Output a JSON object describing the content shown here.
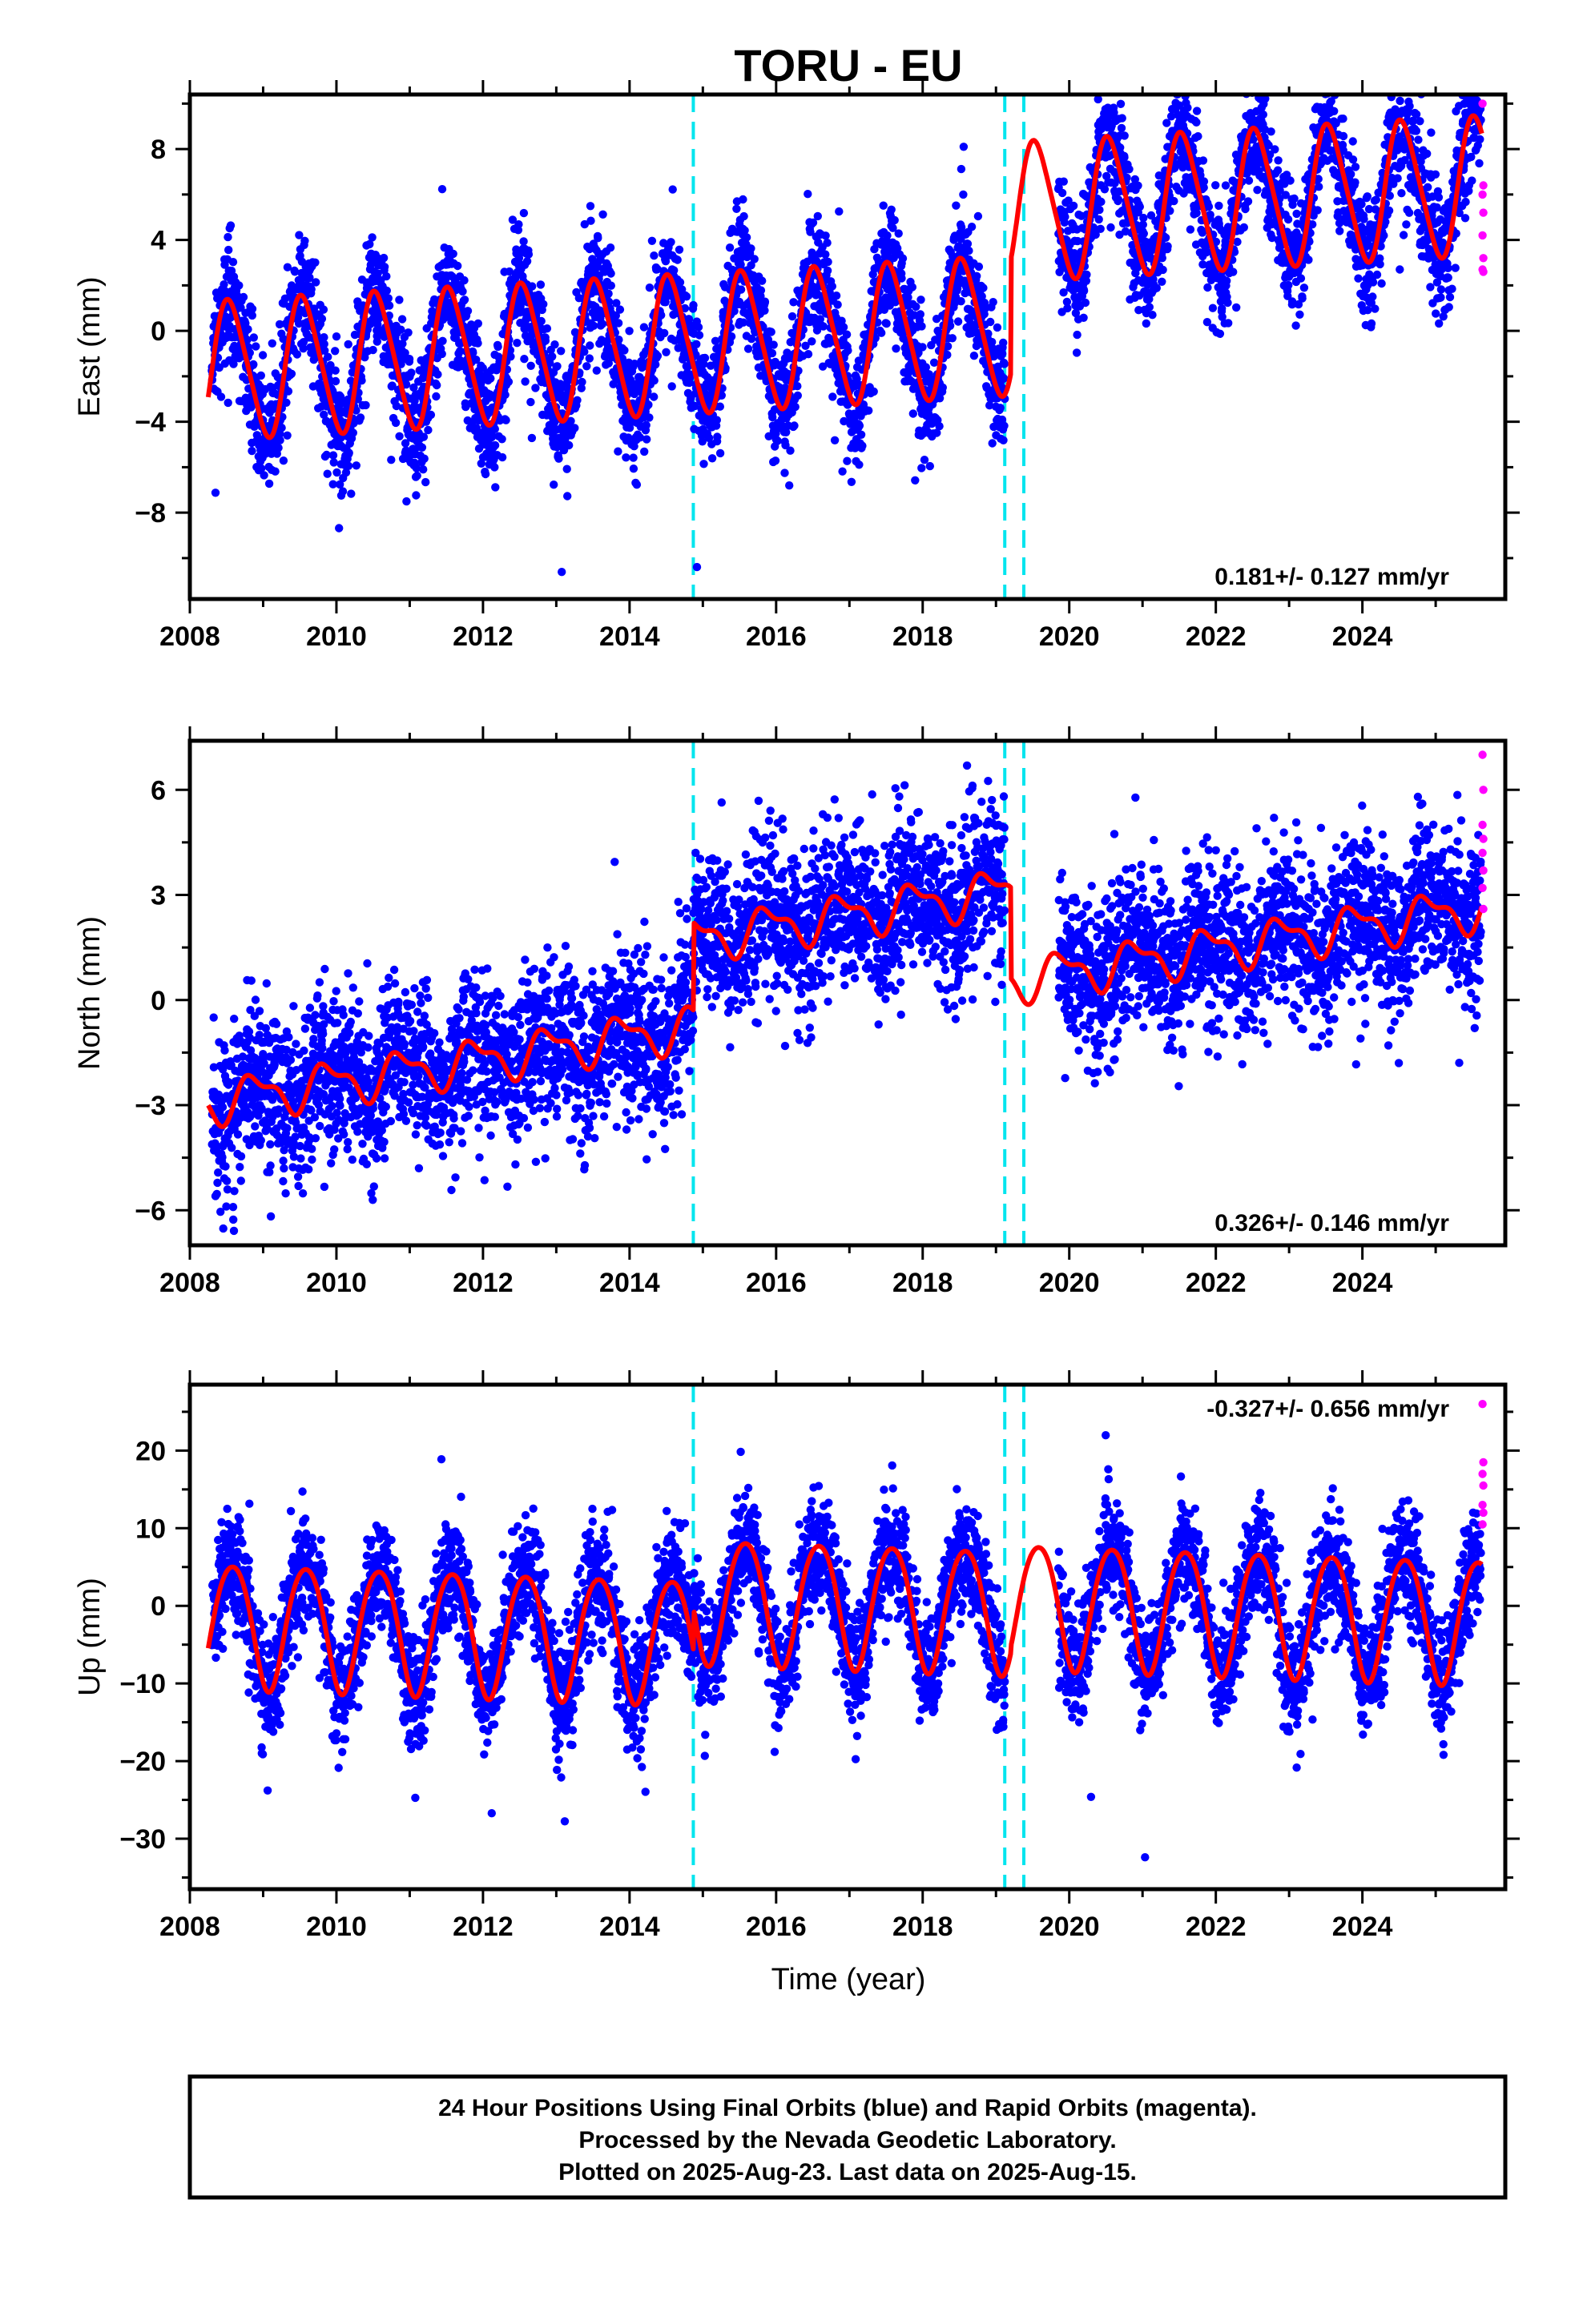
{
  "figure": {
    "title": "TORU - EU",
    "x_axis_label": "Time (year)",
    "footer_lines": [
      "24 Hour Positions Using Final Orbits (blue) and Rapid Orbits (magenta).",
      "Processed by the Nevada Geodetic Laboratory.",
      "Plotted on 2025-Aug-23. Last data on 2025-Aug-15."
    ],
    "colors": {
      "final_orbits": "#0000ff",
      "rapid_orbits": "#ff00ff",
      "model_fit": "#ff0000",
      "steps": "#00e5ee"
    }
  },
  "chart_data": [
    {
      "type": "scatter",
      "id": "east",
      "ylabel": "East (mm)",
      "xlim": [
        2008.0,
        2025.95
      ],
      "ylim": [
        -11.8,
        10.4
      ],
      "xticks": [
        "2008",
        "2010",
        "2012",
        "2014",
        "2016",
        "2018",
        "2020",
        "2022",
        "2024"
      ],
      "yticks": [
        "8",
        "4",
        "0",
        "−4",
        "−8"
      ],
      "ytick_values": [
        8,
        4,
        0,
        -4,
        -8
      ],
      "rate_text": "0.181+/- 0.127 mm/yr",
      "rate_position": "bottom-right",
      "step_epochs": [
        2014.87,
        2019.12,
        2019.38
      ],
      "model": {
        "offsets": [
          [
            2008.0,
            -1.8
          ],
          [
            2019.2,
            3.2
          ]
        ],
        "trend_per_year": 0.181,
        "trend_ref_year": 2008.0,
        "annual_amplitude": 3.0,
        "annual_phase_year": 0.55,
        "semiannual_amplitude": 0.4,
        "semiannual_phase_year": 0.3
      },
      "points_summary": {
        "first_epoch": 2008.3,
        "last_epoch": 2025.62,
        "gap": [
          2019.12,
          2019.85
        ],
        "scatter_mm": 1.3,
        "rapid_orbit_values": [
          10.0,
          6.4,
          6.0,
          5.2,
          4.2,
          3.2,
          2.7,
          2.6
        ]
      }
    },
    {
      "type": "scatter",
      "id": "north",
      "ylabel": "North (mm)",
      "xlim": [
        2008.0,
        2025.95
      ],
      "ylim": [
        -7.0,
        7.4
      ],
      "xticks": [
        "2008",
        "2010",
        "2012",
        "2014",
        "2016",
        "2018",
        "2020",
        "2022",
        "2024"
      ],
      "yticks": [
        "6",
        "3",
        "0",
        "−3",
        "−6"
      ],
      "ytick_values": [
        6,
        3,
        0,
        -3,
        -6
      ],
      "rate_text": "0.326+/- 0.146 mm/yr",
      "rate_position": "bottom-right",
      "step_epochs": [
        2014.87,
        2019.12,
        2019.38
      ],
      "model": {
        "offsets": [
          [
            2008.0,
            -3.0
          ],
          [
            2014.87,
            -0.5
          ],
          [
            2019.2,
            -3.1
          ]
        ],
        "trend_per_year": 0.326,
        "trend_ref_year": 2008.0,
        "annual_amplitude": 0.55,
        "annual_phase_year": 0.9,
        "semiannual_amplitude": 0.25,
        "semiannual_phase_year": 0.6
      },
      "points_summary": {
        "first_epoch": 2008.3,
        "last_epoch": 2025.62,
        "gap": [
          2019.12,
          2019.85
        ],
        "scatter_mm": 1.1,
        "rapid_orbit_values": [
          7.0,
          6.0,
          5.0,
          4.6,
          4.2,
          3.7,
          3.2,
          2.6
        ]
      }
    },
    {
      "type": "scatter",
      "id": "up",
      "ylabel": "Up (mm)",
      "xlim": [
        2008.0,
        2025.95
      ],
      "ylim": [
        -36.5,
        28.5
      ],
      "xticks": [
        "2008",
        "2010",
        "2012",
        "2014",
        "2016",
        "2018",
        "2020",
        "2022",
        "2024"
      ],
      "yticks": [
        "20",
        "10",
        "0",
        "−10",
        "−20",
        "−30"
      ],
      "ytick_values": [
        20,
        10,
        0,
        -10,
        -20,
        -30
      ],
      "rate_text": "-0.327+/- 0.656 mm/yr",
      "rate_position": "top-right",
      "step_epochs": [
        2014.87,
        2019.12,
        2019.38
      ],
      "model": {
        "offsets": [
          [
            2008.0,
            -2.0
          ],
          [
            2014.87,
            3.3
          ],
          [
            2019.2,
            4.1
          ]
        ],
        "trend_per_year": -0.327,
        "trend_ref_year": 2008.0,
        "annual_amplitude": 8.0,
        "annual_phase_year": 0.58,
        "semiannual_amplitude": 0.8,
        "semiannual_phase_year": 0.2
      },
      "points_summary": {
        "first_epoch": 2008.3,
        "last_epoch": 2025.62,
        "gap": [
          2019.12,
          2019.85
        ],
        "scatter_mm": 3.6,
        "rapid_orbit_values": [
          26.0,
          18.5,
          17.0,
          15.5,
          13.0,
          12.0,
          10.5
        ]
      }
    }
  ]
}
